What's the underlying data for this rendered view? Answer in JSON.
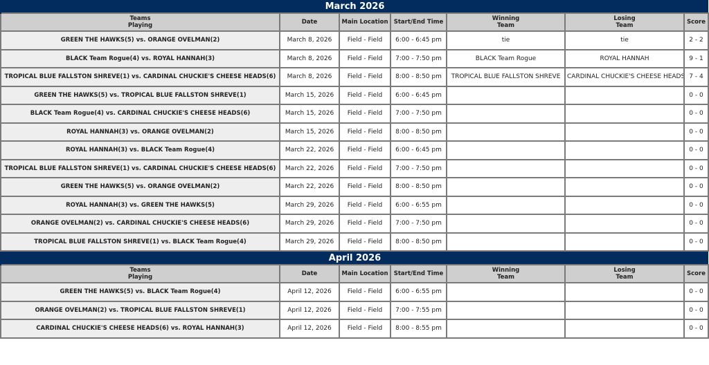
{
  "headers": {
    "teams": "Teams",
    "playing": "Playing",
    "date": "Date",
    "location": "Main Location",
    "time": "Start/End Time",
    "winning": "Winning",
    "losing": "Losing",
    "team": "Team",
    "score": "Score"
  },
  "months": [
    {
      "title": "March 2026",
      "games": [
        {
          "teams": "GREEN THE HAWKS(5) vs. ORANGE OVELMAN(2)",
          "date": "March 8, 2026",
          "location": "Field - Field",
          "time": "6:00 - 6:45 pm",
          "winner": "tie",
          "loser": "tie",
          "score": "2 - 2"
        },
        {
          "teams": "BLACK Team Rogue(4) vs. ROYAL HANNAH(3)",
          "date": "March 8, 2026",
          "location": "Field - Field",
          "time": "7:00 - 7:50 pm",
          "winner": "BLACK Team Rogue",
          "loser": "ROYAL HANNAH",
          "score": "9 - 1"
        },
        {
          "teams": "TROPICAL BLUE FALLSTON SHREVE(1) vs. CARDINAL CHUCKIE'S CHEESE HEADS(6)",
          "date": "March 8, 2026",
          "location": "Field - Field",
          "time": "8:00 - 8:50 pm",
          "winner": "TROPICAL BLUE FALLSTON SHREVE",
          "loser": "CARDINAL CHUCKIE'S CHEESE HEADS",
          "score": "7 - 4"
        },
        {
          "teams": "GREEN THE HAWKS(5) vs. TROPICAL BLUE FALLSTON SHREVE(1)",
          "date": "March 15, 2026",
          "location": "Field - Field",
          "time": "6:00 - 6:45 pm",
          "winner": "",
          "loser": "",
          "score": "0 - 0"
        },
        {
          "teams": "BLACK Team Rogue(4) vs. CARDINAL CHUCKIE'S CHEESE HEADS(6)",
          "date": "March 15, 2026",
          "location": "Field - Field",
          "time": "7:00 - 7:50 pm",
          "winner": "",
          "loser": "",
          "score": "0 - 0"
        },
        {
          "teams": "ROYAL HANNAH(3) vs. ORANGE OVELMAN(2)",
          "date": "March 15, 2026",
          "location": "Field - Field",
          "time": "8:00 - 8:50 pm",
          "winner": "",
          "loser": "",
          "score": "0 - 0"
        },
        {
          "teams": "ROYAL HANNAH(3) vs. BLACK Team Rogue(4)",
          "date": "March 22, 2026",
          "location": "Field - Field",
          "time": "6:00 - 6:45 pm",
          "winner": "",
          "loser": "",
          "score": "0 - 0"
        },
        {
          "teams": "TROPICAL BLUE FALLSTON SHREVE(1) vs. CARDINAL CHUCKIE'S CHEESE HEADS(6)",
          "date": "March 22, 2026",
          "location": "Field - Field",
          "time": "7:00 - 7:50 pm",
          "winner": "",
          "loser": "",
          "score": "0 - 0"
        },
        {
          "teams": "GREEN THE HAWKS(5) vs. ORANGE OVELMAN(2)",
          "date": "March 22, 2026",
          "location": "Field - Field",
          "time": "8:00 - 8:50 pm",
          "winner": "",
          "loser": "",
          "score": "0 - 0"
        },
        {
          "teams": "ROYAL HANNAH(3) vs. GREEN THE HAWKS(5)",
          "date": "March 29, 2026",
          "location": "Field - Field",
          "time": "6:00 - 6:55 pm",
          "winner": "",
          "loser": "",
          "score": "0 - 0"
        },
        {
          "teams": "ORANGE OVELMAN(2) vs. CARDINAL CHUCKIE'S CHEESE HEADS(6)",
          "date": "March 29, 2026",
          "location": "Field - Field",
          "time": "7:00 - 7:50 pm",
          "winner": "",
          "loser": "",
          "score": "0 - 0"
        },
        {
          "teams": "TROPICAL BLUE FALLSTON SHREVE(1) vs. BLACK Team Rogue(4)",
          "date": "March 29, 2026",
          "location": "Field - Field",
          "time": "8:00 - 8:50 pm",
          "winner": "",
          "loser": "",
          "score": "0 - 0"
        }
      ]
    },
    {
      "title": "April 2026",
      "games": [
        {
          "teams": "GREEN THE HAWKS(5) vs. BLACK Team Rogue(4)",
          "date": "April 12, 2026",
          "location": "Field - Field",
          "time": "6:00 - 6:55 pm",
          "winner": "",
          "loser": "",
          "score": "0 - 0"
        },
        {
          "teams": "ORANGE OVELMAN(2) vs. TROPICAL BLUE FALLSTON SHREVE(1)",
          "date": "April 12, 2026",
          "location": "Field - Field",
          "time": "7:00 - 7:55 pm",
          "winner": "",
          "loser": "",
          "score": "0 - 0"
        },
        {
          "teams": "CARDINAL CHUCKIE'S CHEESE HEADS(6) vs. ROYAL HANNAH(3)",
          "date": "April 12, 2026",
          "location": "Field - Field",
          "time": "8:00 - 8:55 pm",
          "winner": "",
          "loser": "",
          "score": "0 - 0"
        }
      ]
    }
  ]
}
